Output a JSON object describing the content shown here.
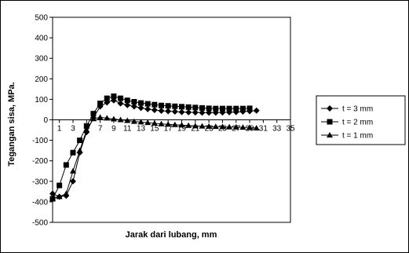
{
  "chart_data": {
    "type": "line",
    "xlabel": "Jarak dari lubang, mm",
    "ylabel": "Tegangan sisa, MPa.",
    "xlim": [
      0,
      35
    ],
    "ylim": [
      -500,
      500
    ],
    "x_ticks": [
      1,
      3,
      5,
      7,
      9,
      11,
      13,
      15,
      17,
      19,
      21,
      23,
      25,
      27,
      29,
      31,
      33,
      35
    ],
    "y_ticks": [
      500,
      400,
      300,
      200,
      100,
      0,
      -100,
      -200,
      -300,
      -400,
      -500
    ],
    "grid": false,
    "legend_position": "right",
    "series": [
      {
        "name": "t = 3 mm",
        "marker": "diamond",
        "x": [
          0,
          1,
          2,
          3,
          4,
          5,
          6,
          7,
          8,
          9,
          10,
          11,
          12,
          13,
          14,
          15,
          16,
          17,
          18,
          19,
          20,
          21,
          22,
          23,
          24,
          25,
          26,
          27,
          28,
          29,
          30
        ],
        "values": [
          -360,
          -375,
          -370,
          -300,
          -160,
          -60,
          10,
          65,
          85,
          95,
          80,
          72,
          65,
          58,
          52,
          48,
          44,
          42,
          40,
          38,
          37,
          36,
          35,
          35,
          35,
          36,
          37,
          38,
          40,
          42,
          45
        ]
      },
      {
        "name": "t = 2 mm",
        "marker": "square",
        "x": [
          0,
          1,
          2,
          3,
          4,
          5,
          6,
          7,
          8,
          9,
          10,
          11,
          12,
          13,
          14,
          15,
          16,
          17,
          18,
          19,
          20,
          21,
          22,
          23,
          24,
          25,
          26,
          27,
          28,
          29
        ],
        "values": [
          -385,
          -320,
          -220,
          -160,
          -100,
          -30,
          30,
          80,
          105,
          115,
          105,
          95,
          88,
          82,
          78,
          74,
          70,
          68,
          66,
          64,
          62,
          60,
          58,
          56,
          55,
          55,
          55,
          55,
          55,
          56
        ]
      },
      {
        "name": "t = 1 mm",
        "marker": "triangle",
        "x": [
          0,
          1,
          2,
          3,
          4,
          5,
          6,
          7,
          8,
          9,
          10,
          11,
          12,
          13,
          14,
          15,
          16,
          17,
          18,
          19,
          20,
          21,
          22,
          23,
          24,
          25,
          26,
          27,
          28,
          29,
          30
        ],
        "values": [
          -385,
          -375,
          -360,
          -250,
          -150,
          -50,
          5,
          12,
          8,
          4,
          0,
          -4,
          -8,
          -11,
          -14,
          -17,
          -20,
          -22,
          -24,
          -26,
          -28,
          -30,
          -31,
          -32,
          -33,
          -34,
          -35,
          -36,
          -37,
          -38,
          -40
        ]
      }
    ]
  }
}
